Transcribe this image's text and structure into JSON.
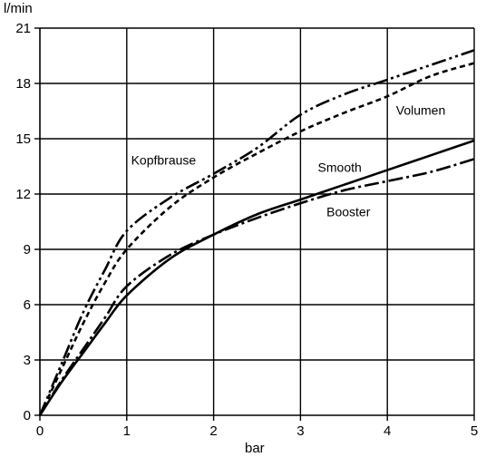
{
  "chart_data": {
    "type": "line",
    "xlabel": "bar",
    "ylabel": "l/min",
    "xlim": [
      0,
      5
    ],
    "ylim": [
      0,
      21
    ],
    "x_ticks": [
      "0",
      "1",
      "2",
      "3",
      "4",
      "5"
    ],
    "y_ticks": [
      "0",
      "3",
      "6",
      "9",
      "12",
      "15",
      "18",
      "21"
    ],
    "grid": true,
    "annotations": [
      {
        "text": "Kopfbrause",
        "x": 1.05,
        "y": 13.6
      },
      {
        "text": "Volumen",
        "x": 4.1,
        "y": 16.3
      },
      {
        "text": "Smooth",
        "x": 3.2,
        "y": 13.2
      },
      {
        "text": "Booster",
        "x": 3.3,
        "y": 10.8
      }
    ],
    "series": [
      {
        "style": "dash-dot-dot",
        "color": "#000000",
        "points": [
          [
            0,
            0
          ],
          [
            0.25,
            2.8
          ],
          [
            0.5,
            5.6
          ],
          [
            0.75,
            7.9
          ],
          [
            1,
            10.0
          ],
          [
            1.5,
            11.8
          ],
          [
            2,
            13.1
          ],
          [
            2.5,
            14.5
          ],
          [
            3,
            16.3
          ],
          [
            3.5,
            17.4
          ],
          [
            4,
            18.2
          ],
          [
            4.5,
            19.0
          ],
          [
            5,
            19.8
          ]
        ]
      },
      {
        "style": "dashed",
        "color": "#000000",
        "points": [
          [
            0,
            0
          ],
          [
            0.25,
            2.5
          ],
          [
            0.5,
            5.0
          ],
          [
            0.75,
            7.2
          ],
          [
            1,
            9.0
          ],
          [
            1.5,
            11.3
          ],
          [
            2,
            12.9
          ],
          [
            2.5,
            14.2
          ],
          [
            3,
            15.4
          ],
          [
            3.5,
            16.4
          ],
          [
            4,
            17.3
          ],
          [
            4.5,
            18.4
          ],
          [
            5,
            19.1
          ]
        ]
      },
      {
        "style": "solid",
        "color": "#000000",
        "points": [
          [
            0,
            0
          ],
          [
            0.25,
            1.8
          ],
          [
            0.5,
            3.4
          ],
          [
            0.75,
            5.0
          ],
          [
            1,
            6.5
          ],
          [
            1.5,
            8.5
          ],
          [
            2,
            9.8
          ],
          [
            2.5,
            10.9
          ],
          [
            3,
            11.7
          ],
          [
            3.5,
            12.5
          ],
          [
            4,
            13.3
          ],
          [
            4.5,
            14.1
          ],
          [
            5,
            14.9
          ]
        ]
      },
      {
        "style": "dash-dot",
        "color": "#000000",
        "points": [
          [
            0,
            0
          ],
          [
            0.25,
            1.9
          ],
          [
            0.5,
            3.6
          ],
          [
            0.75,
            5.3
          ],
          [
            1,
            7.0
          ],
          [
            1.5,
            8.7
          ],
          [
            2,
            9.8
          ],
          [
            2.5,
            10.7
          ],
          [
            3,
            11.5
          ],
          [
            3.5,
            12.2
          ],
          [
            4,
            12.7
          ],
          [
            4.5,
            13.2
          ],
          [
            5,
            13.9
          ]
        ]
      }
    ]
  }
}
